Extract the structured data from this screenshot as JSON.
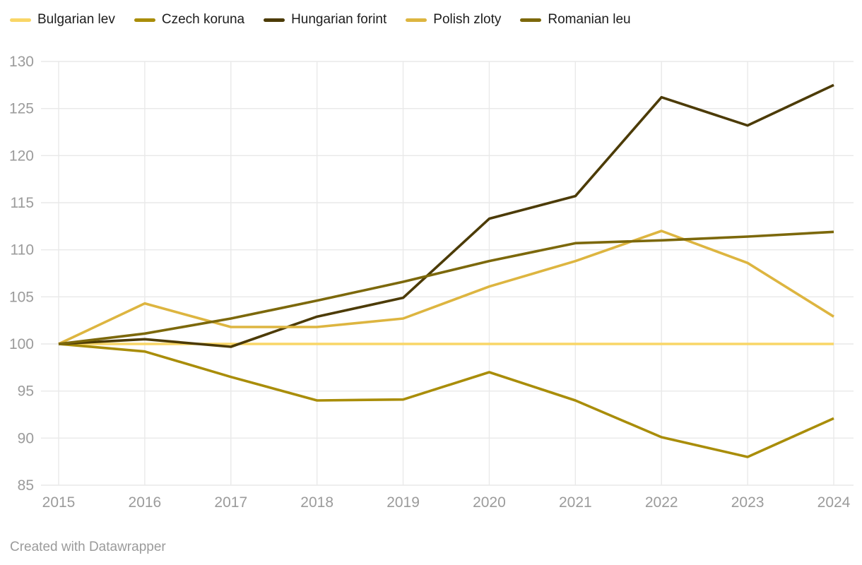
{
  "footer": {
    "credit": "Created with Datawrapper"
  },
  "colors": {
    "grid": "#e9e9e9",
    "tick_label": "#9b9b9b",
    "legend_text": "#1d1d1d",
    "footer_text": "#9b9b9b",
    "background": "#ffffff"
  },
  "chart_data": {
    "type": "line",
    "title": "",
    "xlabel": "",
    "ylabel": "",
    "x": [
      "2015",
      "2016",
      "2017",
      "2018",
      "2019",
      "2020",
      "2021",
      "2022",
      "2023",
      "2024"
    ],
    "y_ticks": [
      85,
      90,
      95,
      100,
      105,
      110,
      115,
      120,
      125,
      130
    ],
    "ylim": [
      85,
      130
    ],
    "grid": true,
    "legend_position": "top",
    "series": [
      {
        "name": "Bulgarian lev",
        "color": "#F9D667",
        "values": [
          100,
          100,
          100,
          100,
          100,
          100,
          100,
          100,
          100,
          100
        ]
      },
      {
        "name": "Czech koruna",
        "color": "#A98D09",
        "values": [
          100,
          99.2,
          96.5,
          94,
          94.1,
          97,
          94,
          90.1,
          88,
          92.1
        ]
      },
      {
        "name": "Hungarian forint",
        "color": "#4C3B06",
        "values": [
          100,
          100.5,
          99.7,
          102.9,
          104.9,
          113.3,
          115.7,
          126.2,
          123.2,
          127.5
        ]
      },
      {
        "name": "Polish zloty",
        "color": "#DDB540",
        "values": [
          100,
          104.3,
          101.8,
          101.8,
          102.7,
          106.1,
          108.8,
          112,
          108.6,
          102.9
        ]
      },
      {
        "name": "Romanian leu",
        "color": "#7C680B",
        "values": [
          100,
          101.1,
          102.7,
          104.6,
          106.6,
          108.8,
          110.7,
          111,
          111.4,
          111.9
        ]
      }
    ]
  }
}
